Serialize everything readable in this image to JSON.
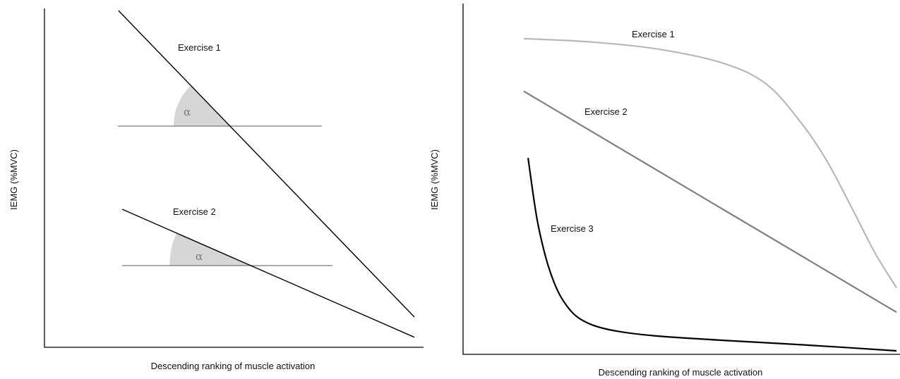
{
  "chart_data": [
    {
      "type": "line",
      "title": "",
      "xlabel": "Descending ranking of muscle activation",
      "ylabel": "IEMG (%MVC)",
      "xlim": [
        0,
        100
      ],
      "ylim": [
        0,
        100
      ],
      "grid": false,
      "series": [
        {
          "name": "Exercise 1",
          "color": "#000000",
          "x": [
            20,
            100
          ],
          "y": [
            100,
            9
          ]
        },
        {
          "name": "Exercise 2",
          "color": "#000000",
          "x": [
            21,
            100
          ],
          "y": [
            41,
            3
          ]
        }
      ],
      "annotations": [
        {
          "text": "α",
          "type": "angle",
          "series": "Exercise 1"
        },
        {
          "text": "α",
          "type": "angle",
          "series": "Exercise 2"
        }
      ]
    },
    {
      "type": "line",
      "title": "",
      "xlabel": "Descending ranking of muscle activation",
      "ylabel": "IEMG (%MVC)",
      "xlim": [
        0,
        100
      ],
      "ylim": [
        0,
        100
      ],
      "grid": false,
      "series": [
        {
          "name": "Exercise 1",
          "color": "#b8b8b8",
          "x": [
            14,
            30,
            45,
            60,
            70,
            78,
            84,
            90,
            95,
            100
          ],
          "y": [
            90,
            89,
            87,
            83,
            77,
            66,
            55,
            41,
            29,
            19
          ]
        },
        {
          "name": "Exercise 2",
          "color": "#808080",
          "x": [
            14,
            100
          ],
          "y": [
            75,
            12
          ]
        },
        {
          "name": "Exercise 3",
          "color": "#000000",
          "x": [
            15,
            17,
            19,
            21,
            23,
            26,
            30,
            36,
            45,
            60,
            80,
            100
          ],
          "y": [
            56,
            39,
            28,
            20.5,
            15.5,
            11,
            8.3,
            6.5,
            5.2,
            4,
            2.6,
            1
          ]
        }
      ]
    }
  ]
}
